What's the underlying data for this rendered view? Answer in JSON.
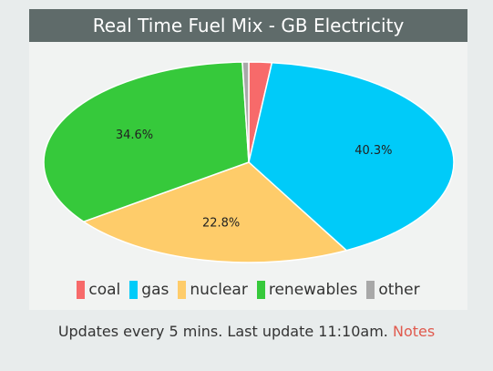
{
  "title": "Real Time Fuel Mix - GB Electricity",
  "footer": {
    "text": "Updates every 5 mins. Last update 11:10am.",
    "link_label": "Notes"
  },
  "chart_data": {
    "type": "pie",
    "title": "Real Time Fuel Mix - GB Electricity",
    "legend_position": "bottom",
    "series": [
      {
        "name": "coal",
        "value": 1.8,
        "label": "",
        "color": "#f76a6a"
      },
      {
        "name": "gas",
        "value": 40.3,
        "label": "40.3%",
        "color": "#00cbf9"
      },
      {
        "name": "nuclear",
        "value": 22.8,
        "label": "22.8%",
        "color": "#fecc6a"
      },
      {
        "name": "renewables",
        "value": 34.6,
        "label": "34.6%",
        "color": "#36c93b"
      },
      {
        "name": "other",
        "value": 0.5,
        "label": "",
        "color": "#a8a8a8"
      }
    ]
  }
}
